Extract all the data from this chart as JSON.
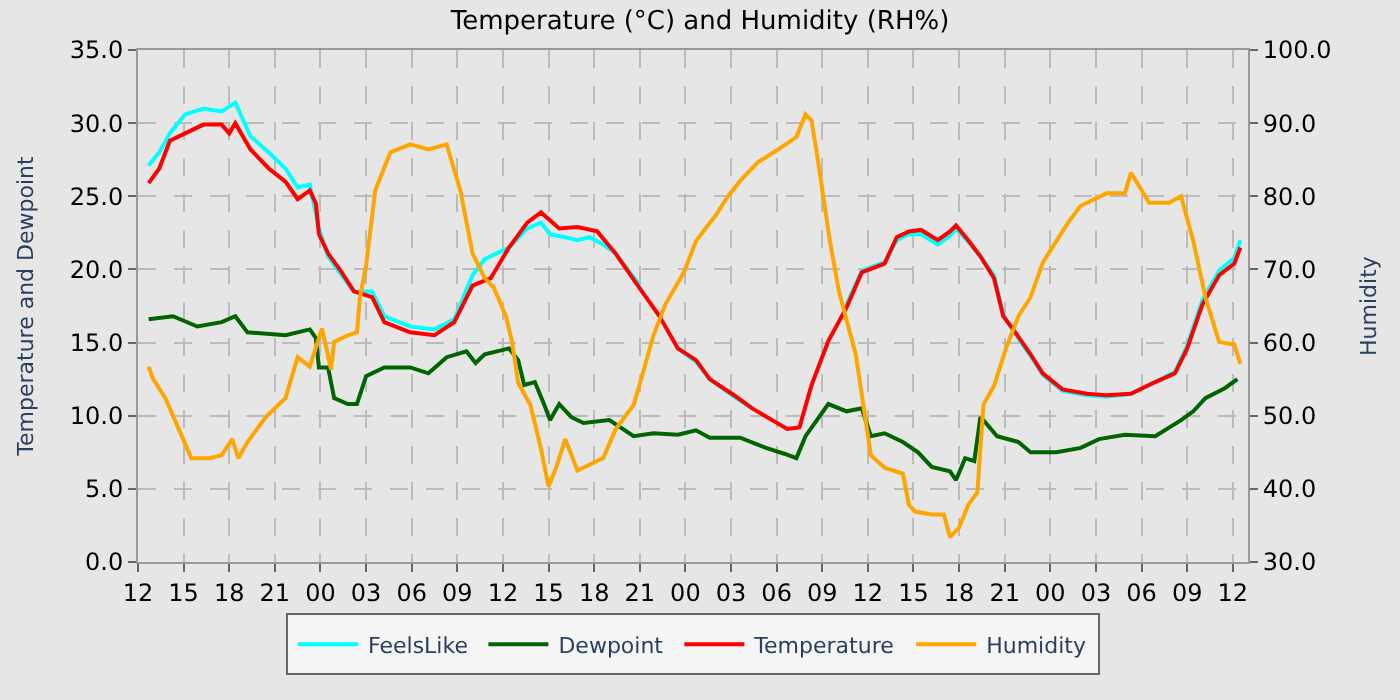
{
  "chart_data": {
    "type": "line",
    "title": "Temperature (°C) and Humidity (RH%)",
    "ylabel": "Temperature and Dewpoint",
    "y2label": "Humidity",
    "xlim": [
      12,
      85
    ],
    "xticks": [
      {
        "value": 12,
        "label": "12"
      },
      {
        "value": 15,
        "label": "15"
      },
      {
        "value": 18,
        "label": "18"
      },
      {
        "value": 21,
        "label": "21"
      },
      {
        "value": 24,
        "label": "00"
      },
      {
        "value": 27,
        "label": "03"
      },
      {
        "value": 30,
        "label": "06"
      },
      {
        "value": 33,
        "label": "09"
      },
      {
        "value": 36,
        "label": "12"
      },
      {
        "value": 39,
        "label": "15"
      },
      {
        "value": 42,
        "label": "18"
      },
      {
        "value": 45,
        "label": "21"
      },
      {
        "value": 48,
        "label": "00"
      },
      {
        "value": 51,
        "label": "03"
      },
      {
        "value": 54,
        "label": "06"
      },
      {
        "value": 57,
        "label": "09"
      },
      {
        "value": 60,
        "label": "12"
      },
      {
        "value": 63,
        "label": "15"
      },
      {
        "value": 66,
        "label": "18"
      },
      {
        "value": 69,
        "label": "21"
      },
      {
        "value": 72,
        "label": "00"
      },
      {
        "value": 75,
        "label": "03"
      },
      {
        "value": 78,
        "label": "06"
      },
      {
        "value": 81,
        "label": "09"
      },
      {
        "value": 84,
        "label": "12"
      }
    ],
    "ylim": [
      0,
      35
    ],
    "yticks": [
      {
        "value": 0,
        "label": "0.0"
      },
      {
        "value": 5,
        "label": "5.0"
      },
      {
        "value": 10,
        "label": "10.0"
      },
      {
        "value": 15,
        "label": "15.0"
      },
      {
        "value": 20,
        "label": "20.0"
      },
      {
        "value": 25,
        "label": "25.0"
      },
      {
        "value": 30,
        "label": "30.0"
      },
      {
        "value": 35,
        "label": "35.0"
      }
    ],
    "y2lim": [
      30,
      100
    ],
    "y2ticks": [
      {
        "value": 30,
        "label": "30.0"
      },
      {
        "value": 40,
        "label": "40.0"
      },
      {
        "value": 50,
        "label": "50.0"
      },
      {
        "value": 60,
        "label": "60.0"
      },
      {
        "value": 70,
        "label": "70.0"
      },
      {
        "value": 80,
        "label": "80.0"
      },
      {
        "value": 90,
        "label": "90.0"
      },
      {
        "value": 100,
        "label": "100.0"
      }
    ],
    "grid": true,
    "legend": "bottom",
    "marker": "none",
    "line_style": "solid",
    "series": [
      {
        "name": "FeelsLike",
        "color": "#00ffff",
        "x": [
          12.7,
          13.4,
          14.1,
          15.1,
          16.3,
          17.5,
          18.4,
          19.4,
          20.6,
          21.7,
          22.5,
          23.3,
          23.9,
          24.5,
          25.4,
          26.2,
          27.4,
          28.2,
          29.9,
          31.5,
          32.8,
          34.0,
          34.8,
          36.4,
          37.6,
          38.5,
          39.1,
          40.1,
          40.9,
          41.7,
          42.6,
          43.4,
          45.0,
          46.3,
          47.5,
          48.7,
          49.6,
          51.2,
          52.4,
          53.7,
          54.7,
          55.5,
          56.3,
          57.4,
          58.6,
          59.6,
          61.1,
          61.9,
          62.7,
          63.5,
          64.6,
          65.4,
          65.8,
          66.6,
          67.4,
          68.3,
          68.9,
          69.7,
          70.7,
          71.5,
          72.8,
          74.4,
          75.7,
          77.3,
          78.9,
          80.2,
          81.0,
          82.0,
          83.1,
          84.1,
          84.5
        ],
        "values": [
          27.1,
          28.0,
          29.3,
          30.6,
          31.0,
          30.8,
          31.4,
          29.1,
          28.0,
          26.9,
          25.6,
          25.8,
          22.8,
          20.9,
          19.6,
          18.5,
          18.5,
          16.8,
          16.1,
          15.9,
          16.6,
          19.6,
          20.7,
          21.5,
          22.8,
          23.2,
          22.4,
          22.2,
          22.0,
          22.2,
          21.7,
          21.1,
          18.9,
          null,
          14.6,
          13.7,
          12.5,
          11.3,
          10.5,
          null,
          null,
          null,
          null,
          null,
          17.6,
          19.9,
          20.5,
          22.0,
          22.4,
          22.4,
          21.7,
          22.3,
          22.8,
          21.9,
          20.9,
          19.6,
          16.9,
          15.6,
          14.1,
          12.8,
          11.7,
          11.4,
          11.3,
          11.5,
          12.3,
          13.0,
          14.8,
          17.9,
          19.9,
          20.8,
          22.0
        ]
      },
      {
        "name": "Dewpoint",
        "color": "#006400",
        "x": [
          12.7,
          14.3,
          15.9,
          17.5,
          18.4,
          19.2,
          21.7,
          23.3,
          23.7,
          23.9,
          24.5,
          24.9,
          25.8,
          26.4,
          27.0,
          28.2,
          29.9,
          31.1,
          32.3,
          33.6,
          34.2,
          34.8,
          35.6,
          36.4,
          37.0,
          37.4,
          38.1,
          38.7,
          39.1,
          39.7,
          40.5,
          41.3,
          43.0,
          44.6,
          45.9,
          47.5,
          48.7,
          49.6,
          51.6,
          53.3,
          54.5,
          55.3,
          55.9,
          57.4,
          58.6,
          59.6,
          60.2,
          61.1,
          62.3,
          63.3,
          64.2,
          65.4,
          65.8,
          66.4,
          67.0,
          67.4,
          67.6,
          68.5,
          69.9,
          70.7,
          72.4,
          74.0,
          75.2,
          76.9,
          78.9,
          80.6,
          81.4,
          82.2,
          83.5,
          84.3
        ],
        "values": [
          16.6,
          16.8,
          16.1,
          16.4,
          16.8,
          15.7,
          15.5,
          15.9,
          15.3,
          13.3,
          13.3,
          11.2,
          10.8,
          10.8,
          12.7,
          13.3,
          13.3,
          12.9,
          14.0,
          14.4,
          13.6,
          14.2,
          14.4,
          14.6,
          13.8,
          12.1,
          12.3,
          10.8,
          9.7,
          10.8,
          9.9,
          9.5,
          9.7,
          8.6,
          8.8,
          8.7,
          9.0,
          8.5,
          8.5,
          7.8,
          7.4,
          7.1,
          8.6,
          10.8,
          10.3,
          10.5,
          8.6,
          8.8,
          8.2,
          7.5,
          6.5,
          6.2,
          5.6,
          7.1,
          6.9,
          9.9,
          9.7,
          8.6,
          8.2,
          7.5,
          7.5,
          7.8,
          8.4,
          8.7,
          8.6,
          9.7,
          10.3,
          11.2,
          11.9,
          12.5
        ]
      },
      {
        "name": "Temperature",
        "color": "#ff0000",
        "x": [
          12.7,
          13.4,
          14.1,
          15.1,
          16.3,
          17.5,
          18.0,
          18.4,
          19.4,
          20.6,
          21.7,
          22.5,
          23.3,
          23.7,
          23.9,
          24.5,
          25.4,
          26.2,
          27.4,
          28.2,
          29.9,
          31.5,
          32.8,
          34.0,
          35.2,
          36.4,
          37.6,
          38.5,
          39.7,
          40.9,
          42.2,
          43.4,
          45.0,
          46.3,
          47.5,
          48.7,
          49.6,
          51.2,
          52.4,
          53.7,
          54.7,
          55.5,
          56.3,
          57.4,
          58.6,
          59.6,
          61.1,
          61.9,
          62.7,
          63.5,
          64.6,
          65.4,
          65.8,
          66.6,
          67.4,
          68.3,
          68.9,
          69.7,
          70.7,
          71.5,
          72.8,
          74.4,
          75.7,
          77.3,
          78.9,
          80.2,
          81.0,
          82.0,
          83.1,
          84.1,
          84.5
        ],
        "values": [
          25.9,
          26.9,
          28.8,
          29.3,
          29.9,
          29.9,
          29.3,
          30.0,
          28.2,
          26.9,
          26.0,
          24.8,
          25.4,
          24.5,
          22.4,
          21.1,
          19.8,
          18.5,
          18.1,
          16.4,
          15.7,
          15.5,
          16.4,
          18.9,
          19.4,
          21.5,
          23.2,
          23.9,
          22.8,
          22.9,
          22.6,
          21.1,
          18.7,
          16.8,
          14.6,
          13.8,
          12.5,
          11.4,
          10.5,
          9.7,
          9.1,
          9.2,
          12.1,
          15.1,
          17.4,
          19.8,
          20.4,
          22.2,
          22.6,
          22.7,
          22.0,
          22.6,
          23.0,
          22.0,
          20.9,
          19.4,
          16.8,
          15.7,
          14.2,
          12.9,
          11.8,
          11.5,
          11.4,
          11.5,
          12.3,
          12.9,
          14.6,
          17.6,
          19.6,
          20.4,
          21.5
        ]
      },
      {
        "name": "Humidity",
        "color": "#ffa500",
        "axis": "y2",
        "x": [
          12.7,
          13.0,
          13.8,
          14.7,
          15.5,
          16.7,
          17.5,
          18.2,
          18.6,
          19.2,
          20.4,
          21.7,
          22.5,
          23.3,
          23.7,
          24.1,
          24.7,
          24.9,
          25.8,
          26.4,
          26.6,
          27.0,
          27.6,
          28.6,
          29.9,
          31.1,
          32.3,
          33.2,
          34.0,
          34.8,
          35.4,
          36.2,
          36.6,
          37.0,
          37.8,
          38.5,
          39.0,
          39.5,
          40.1,
          40.9,
          42.6,
          43.4,
          44.6,
          45.2,
          45.9,
          46.7,
          47.9,
          48.7,
          50.0,
          50.8,
          51.6,
          52.8,
          54.1,
          55.3,
          55.9,
          56.3,
          56.7,
          57.5,
          58.1,
          59.2,
          60.2,
          61.1,
          62.3,
          62.7,
          63.1,
          64.2,
          65.0,
          65.4,
          66.0,
          66.6,
          67.2,
          67.6,
          68.3,
          69.1,
          69.9,
          70.7,
          71.5,
          72.4,
          73.2,
          74.0,
          75.7,
          76.9,
          77.3,
          77.9,
          78.5,
          79.8,
          80.6,
          81.4,
          82.2,
          83.1,
          84.1,
          84.5
        ],
        "values": [
          56.7,
          55.0,
          52.4,
          48.1,
          44.2,
          44.2,
          44.6,
          46.8,
          44.2,
          46.4,
          49.8,
          52.4,
          58.0,
          56.7,
          59.3,
          61.9,
          56.3,
          60.1,
          61.0,
          61.4,
          66.2,
          70.5,
          80.8,
          86.0,
          87.1,
          86.4,
          87.1,
          80.8,
          72.2,
          68.8,
          67.5,
          63.6,
          60.1,
          54.5,
          51.5,
          45.5,
          40.3,
          42.9,
          46.8,
          42.5,
          44.2,
          48.1,
          51.5,
          55.8,
          61.0,
          65.3,
          69.6,
          73.9,
          77.4,
          80.0,
          82.1,
          84.7,
          86.4,
          88.1,
          91.2,
          90.3,
          85.1,
          73.9,
          67.0,
          58.4,
          44.6,
          42.9,
          42.1,
          37.8,
          36.9,
          36.5,
          36.5,
          33.4,
          34.7,
          37.8,
          39.5,
          51.5,
          54.1,
          59.3,
          63.6,
          66.2,
          70.9,
          73.9,
          76.5,
          78.7,
          80.4,
          80.4,
          83.2,
          81.2,
          79.1,
          79.1,
          80.0,
          73.9,
          66.2,
          60.1,
          59.7,
          57.1
        ]
      }
    ]
  }
}
